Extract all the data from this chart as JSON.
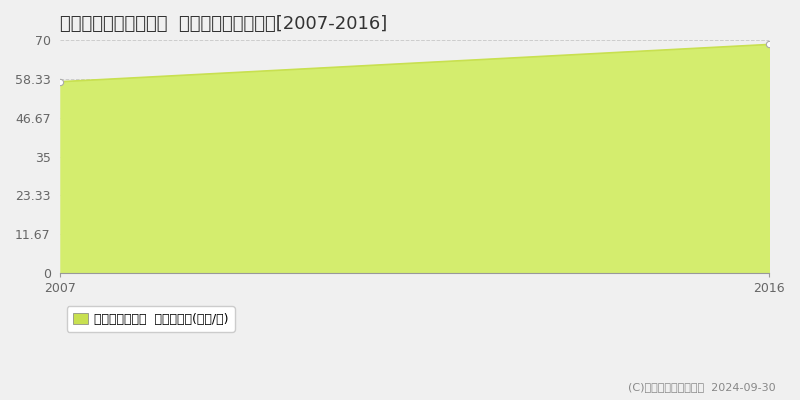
{
  "title": "名古屋市中川区馬手町  マンション価格推移[2007-2016]",
  "years": [
    2007,
    2016
  ],
  "values": [
    57.5,
    68.7
  ],
  "fill_color": "#d4ed6e",
  "line_color": "#c8e050",
  "marker_color": "#ffffff",
  "marker_edge_color": "#aaaaaa",
  "ylim": [
    0,
    70
  ],
  "yticks": [
    0,
    11.67,
    23.33,
    35,
    46.67,
    58.33,
    70
  ],
  "ytick_labels": [
    "0",
    "11.67",
    "23.33",
    "35",
    "46.67",
    "58.33",
    "70"
  ],
  "xlim_start": 2007,
  "xlim_end": 2016,
  "grid_color": "#cccccc",
  "background_color": "#f0f0f0",
  "plot_bg_color": "#f0f0f0",
  "legend_label": "マンション価格  平均坪単価(万円/坪)",
  "legend_color": "#c8e050",
  "copyright_text": "(C)土地価格ドットコム  2024-09-30",
  "title_fontsize": 13,
  "tick_fontsize": 9,
  "legend_fontsize": 9,
  "copyright_fontsize": 8
}
